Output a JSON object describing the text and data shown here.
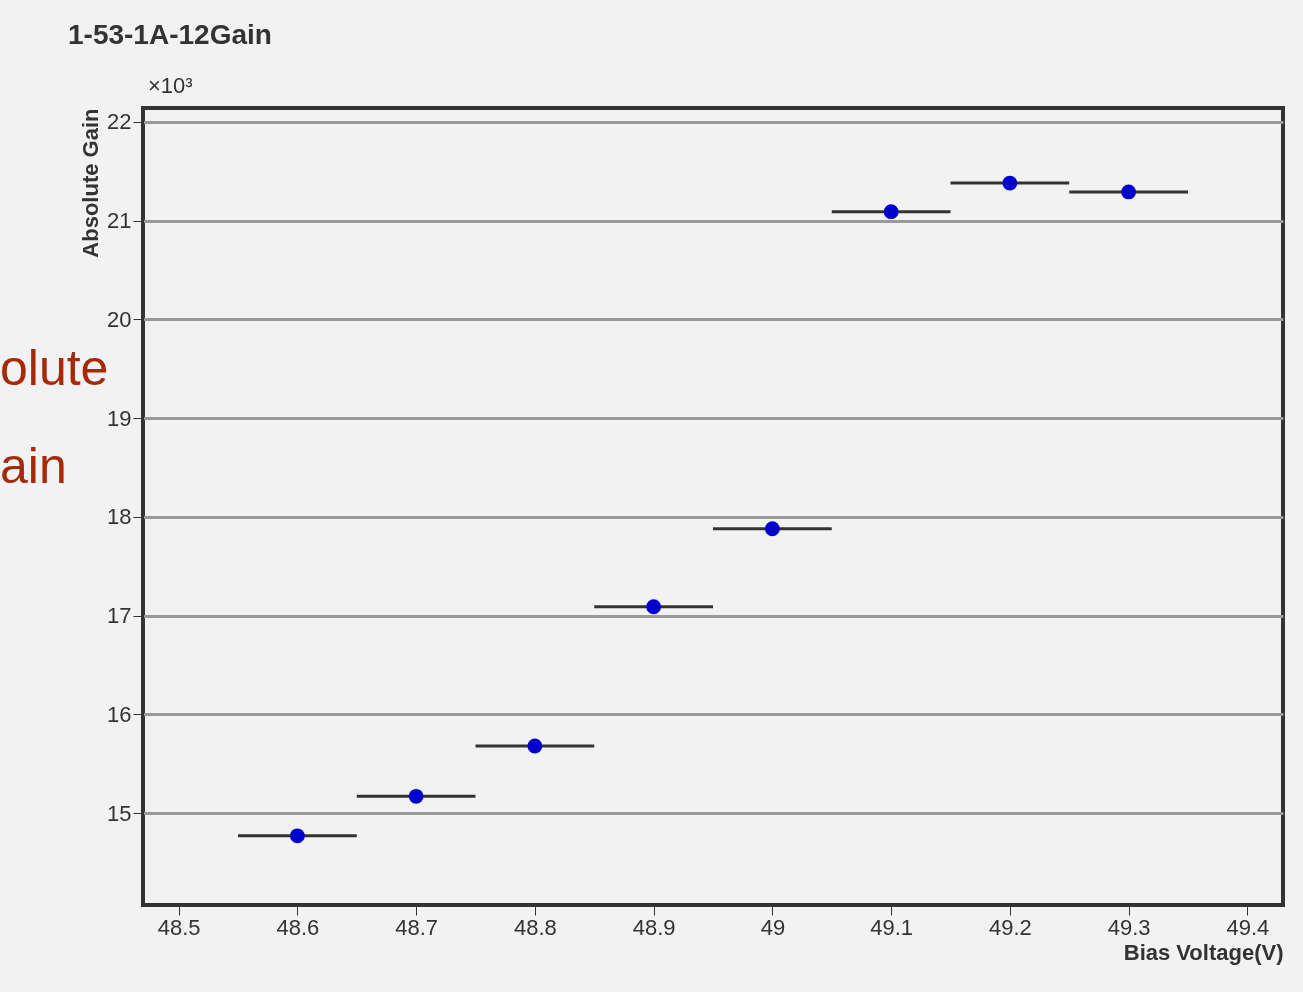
{
  "chart_data": {
    "type": "scatter",
    "title": "1-53-1A-12Gain",
    "xlabel": "Bias Voltage(V)",
    "ylabel": "Absolute Gain",
    "annotations": [
      "×10³",
      "olute",
      "ain"
    ],
    "x": [
      48.6,
      48.7,
      48.8,
      48.9,
      49.0,
      49.1,
      49.2,
      49.3
    ],
    "series": [
      {
        "color": "#0000cc",
        "values": [
          14.77,
          15.17,
          15.68,
          17.09,
          17.88,
          21.09,
          21.38,
          21.29
        ],
        "xerrors": [
          0.05,
          0.05,
          0.05,
          0.05,
          0.05,
          0.05,
          0.05,
          0.05
        ]
      }
    ],
    "xlim": [
      48.47,
      49.43
    ],
    "xticks": [
      48.5,
      48.6,
      48.7,
      48.8,
      48.9,
      49,
      49.1,
      49.2,
      49.3,
      49.4
    ],
    "ylim": [
      14.07,
      22.14
    ],
    "yticks": [
      15,
      16,
      17,
      18,
      19,
      20,
      21,
      22
    ],
    "grid": "y",
    "marker": "circle"
  }
}
